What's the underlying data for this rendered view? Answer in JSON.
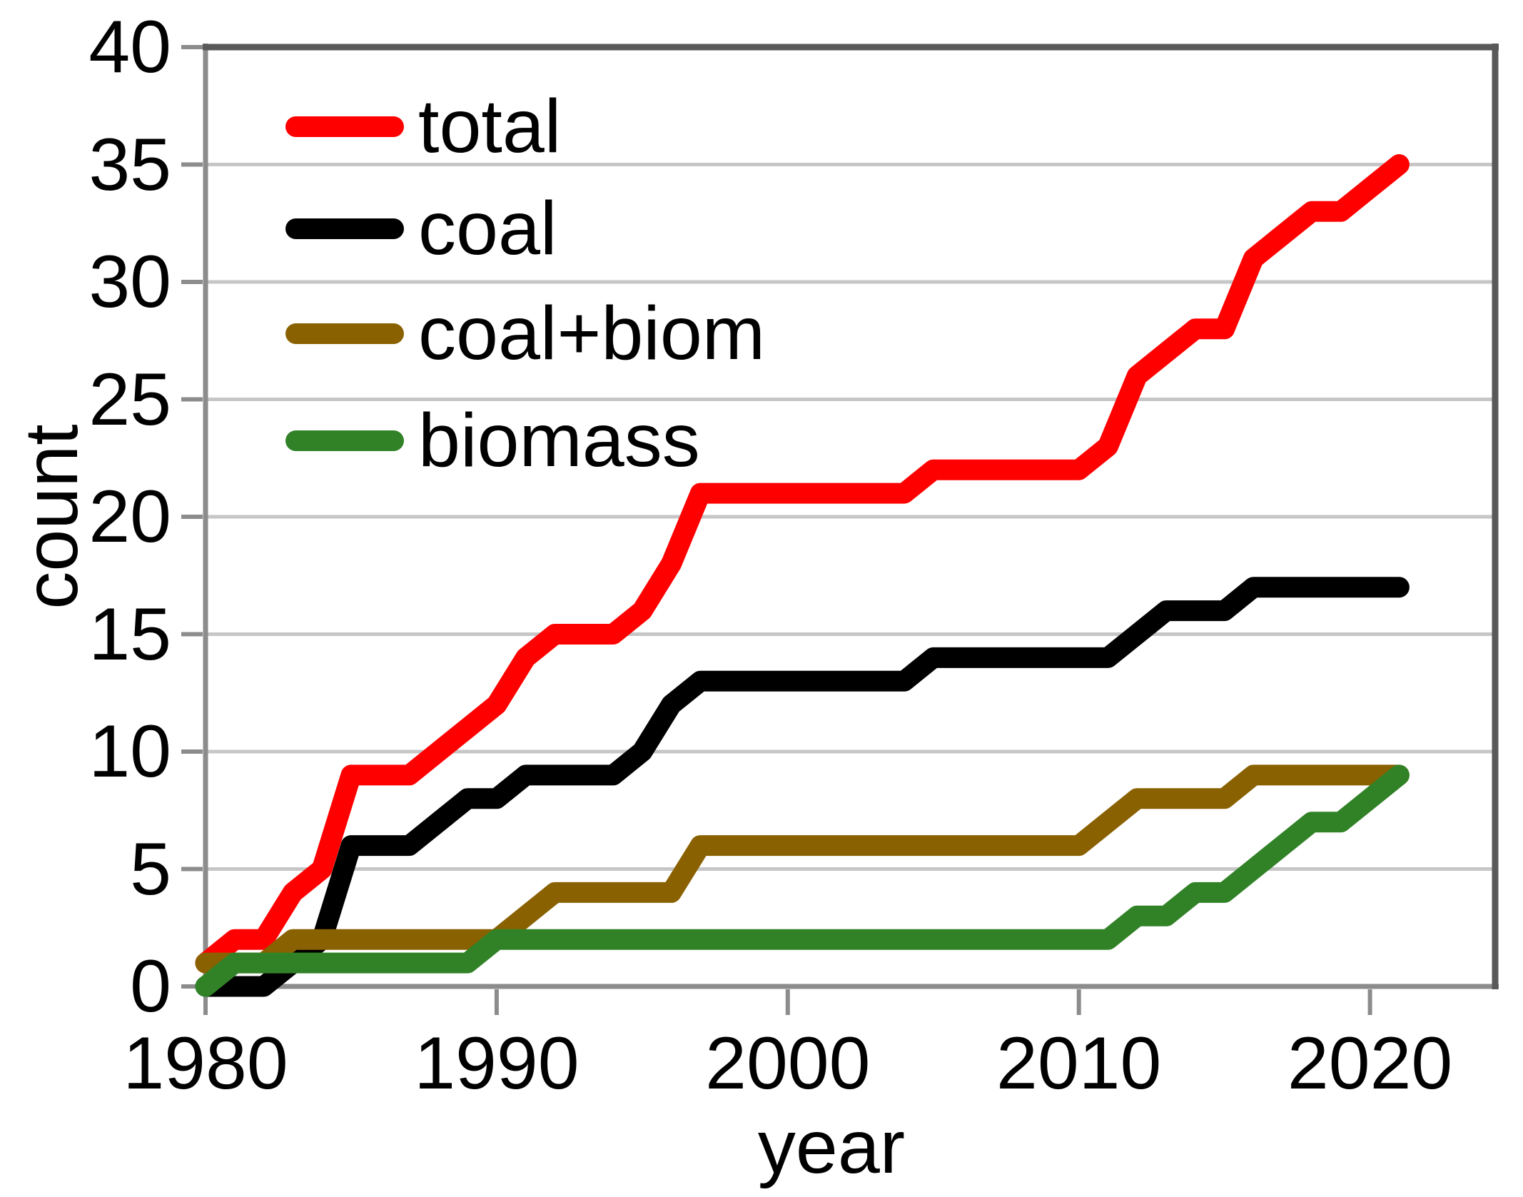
{
  "figure": {
    "background": "#FFFFFF"
  },
  "chart_data": {
    "type": "line",
    "title": "",
    "xlabel": "year",
    "ylabel": "count",
    "x": [
      1980,
      1981,
      1982,
      1983,
      1984,
      1985,
      1986,
      1987,
      1988,
      1989,
      1990,
      1991,
      1992,
      1993,
      1994,
      1995,
      1996,
      1997,
      1998,
      1999,
      2000,
      2001,
      2002,
      2003,
      2004,
      2005,
      2006,
      2007,
      2008,
      2009,
      2010,
      2011,
      2012,
      2013,
      2014,
      2015,
      2016,
      2017,
      2018,
      2019,
      2020,
      2021
    ],
    "series": [
      {
        "name": "total",
        "color": "#FF0000",
        "values": [
          1,
          2,
          2,
          4,
          5,
          9,
          9,
          9,
          10,
          11,
          12,
          14,
          15,
          15,
          15,
          16,
          18,
          21,
          21,
          21,
          21,
          21,
          21,
          21,
          21,
          22,
          22,
          22,
          22,
          22,
          22,
          23,
          26,
          27,
          28,
          28,
          31,
          32,
          33,
          33,
          34,
          35
        ]
      },
      {
        "name": "coal",
        "color": "#000000",
        "values": [
          0,
          0,
          0,
          1,
          2,
          6,
          6,
          6,
          7,
          8,
          8,
          9,
          9,
          9,
          9,
          10,
          12,
          13,
          13,
          13,
          13,
          13,
          13,
          13,
          13,
          14,
          14,
          14,
          14,
          14,
          14,
          14,
          15,
          16,
          16,
          16,
          17,
          17,
          17,
          17,
          17,
          17
        ]
      },
      {
        "name": "coal+biom",
        "color": "#8A6100",
        "values": [
          1,
          1,
          1,
          2,
          2,
          2,
          2,
          2,
          2,
          2,
          2,
          3,
          4,
          4,
          4,
          4,
          4,
          6,
          6,
          6,
          6,
          6,
          6,
          6,
          6,
          6,
          6,
          6,
          6,
          6,
          6,
          7,
          8,
          8,
          8,
          8,
          9,
          9,
          9,
          9,
          9,
          9
        ]
      },
      {
        "name": "biomass",
        "color": "#318227",
        "values": [
          0,
          1,
          1,
          1,
          1,
          1,
          1,
          1,
          1,
          1,
          2,
          2,
          2,
          2,
          2,
          2,
          2,
          2,
          2,
          2,
          2,
          2,
          2,
          2,
          2,
          2,
          2,
          2,
          2,
          2,
          2,
          2,
          3,
          3,
          4,
          4,
          5,
          6,
          7,
          7,
          8,
          9
        ]
      }
    ],
    "xlim": [
      1980,
      2024.3
    ],
    "ylim": [
      0,
      40
    ],
    "x_ticks": [
      1980,
      1990,
      2000,
      2010,
      2020
    ],
    "y_ticks": [
      0,
      5,
      10,
      15,
      20,
      25,
      30,
      35,
      40
    ],
    "grid": "horizontal",
    "legend_position": "upper-left-inside",
    "gridline_color": "#C6C6C6",
    "axis_color": "#8C8C8C",
    "border_color": "#595959",
    "text_color": "#000000",
    "line_width": 29
  }
}
